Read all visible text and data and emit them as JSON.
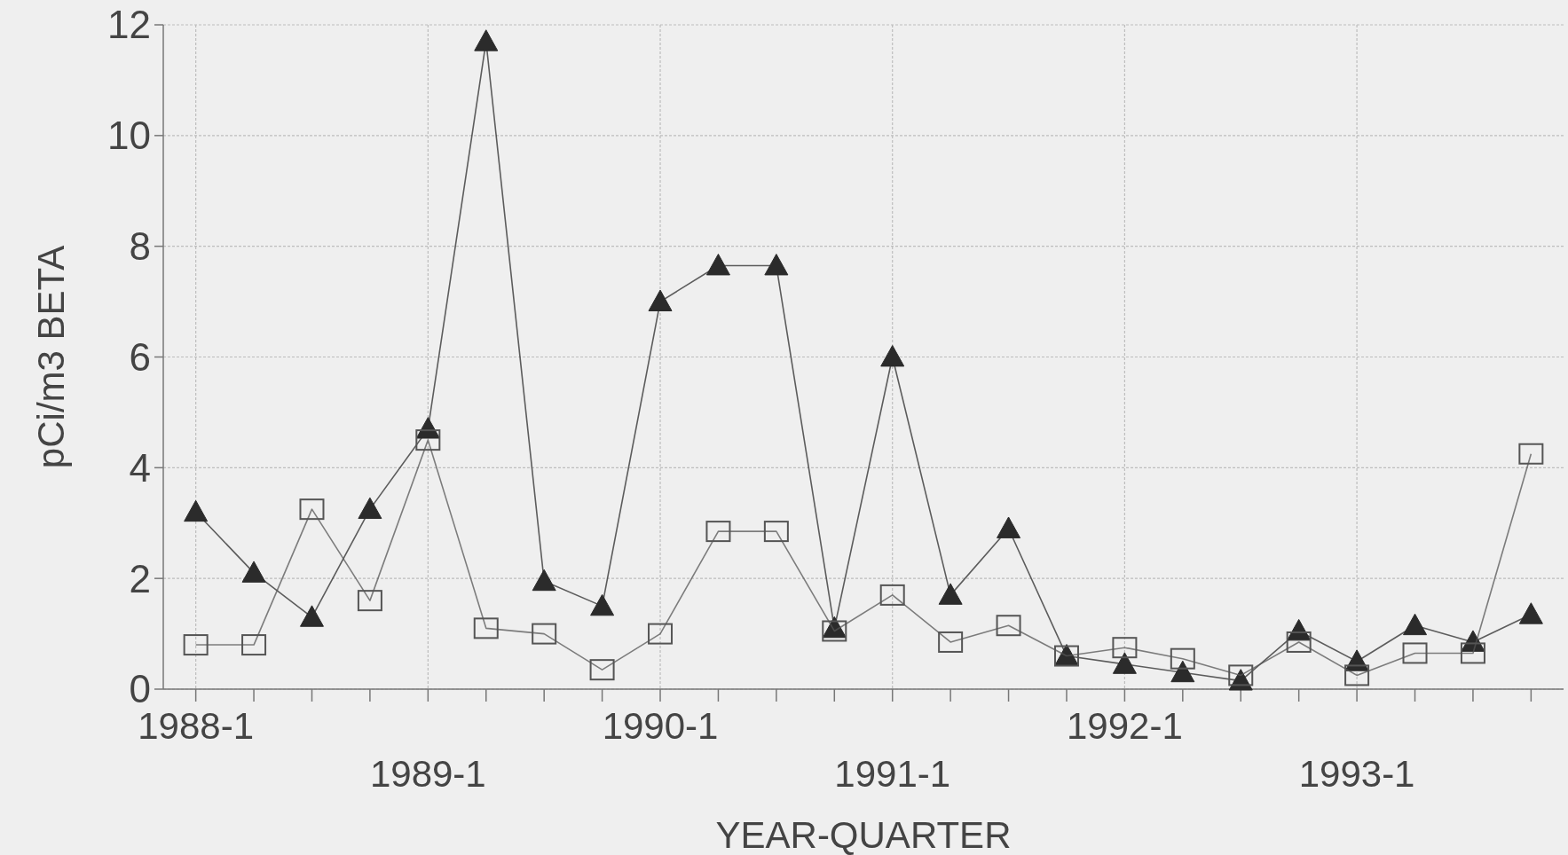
{
  "chart_data": {
    "type": "line",
    "xlabel": "YEAR-QUARTER",
    "ylabel": "pCi/m3 BETA",
    "categories": [
      "1988-1",
      null,
      null,
      null,
      "1989-1",
      null,
      null,
      null,
      "1990-1",
      null,
      null,
      null,
      "1991-1",
      null,
      null,
      null,
      "1992-1",
      null,
      null,
      null,
      "1993-1",
      null,
      null,
      null
    ],
    "series": [
      {
        "color": "#2b2b2b",
        "marker": "triangle",
        "values": [
          3.2,
          2.1,
          1.3,
          3.25,
          4.7,
          11.7,
          1.95,
          1.5,
          7.0,
          7.65,
          7.65,
          1.1,
          6.0,
          1.7,
          2.9,
          0.6,
          0.45,
          0.3,
          0.15,
          1.05,
          0.5,
          1.15,
          0.85,
          1.35
        ]
      },
      {
        "color": "#555555",
        "marker": "square",
        "values": [
          0.8,
          0.8,
          3.25,
          1.6,
          4.5,
          1.1,
          1.0,
          0.35,
          1.0,
          2.85,
          2.85,
          1.05,
          1.7,
          0.85,
          1.15,
          0.6,
          0.75,
          0.55,
          0.25,
          0.85,
          0.25,
          0.65,
          0.65,
          4.25
        ]
      }
    ],
    "ylim": [
      0,
      12
    ],
    "yticks": [
      0,
      2,
      4,
      6,
      8,
      10,
      12
    ],
    "grid": true,
    "line_style": "solid"
  }
}
